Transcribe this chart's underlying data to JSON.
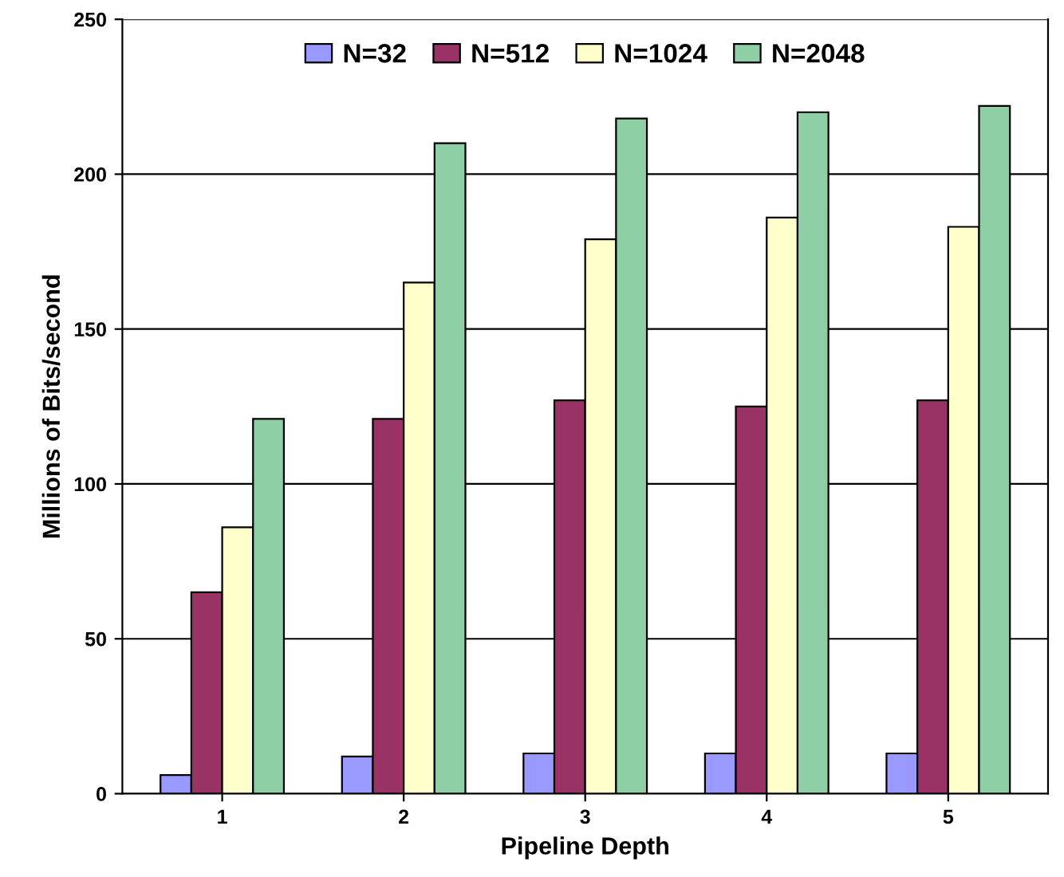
{
  "chart_data": {
    "type": "bar",
    "xlabel": "Pipeline Depth",
    "ylabel": "Millions of Bits/second",
    "categories": [
      "1",
      "2",
      "3",
      "4",
      "5"
    ],
    "series": [
      {
        "name": "N=32",
        "color": "#9999ff",
        "values": [
          6,
          12,
          13,
          13,
          13
        ]
      },
      {
        "name": "N=512",
        "color": "#993366",
        "values": [
          65,
          121,
          127,
          125,
          127
        ]
      },
      {
        "name": "N=1024",
        "color": "#ffffcc",
        "values": [
          86,
          165,
          179,
          186,
          183
        ]
      },
      {
        "name": "N=2048",
        "color": "#8fcfa5",
        "values": [
          121,
          210,
          218,
          220,
          222
        ]
      }
    ],
    "ylim": [
      0,
      250
    ],
    "yticks": [
      0,
      50,
      100,
      150,
      200,
      250
    ],
    "grid": "y",
    "legend": "top"
  }
}
